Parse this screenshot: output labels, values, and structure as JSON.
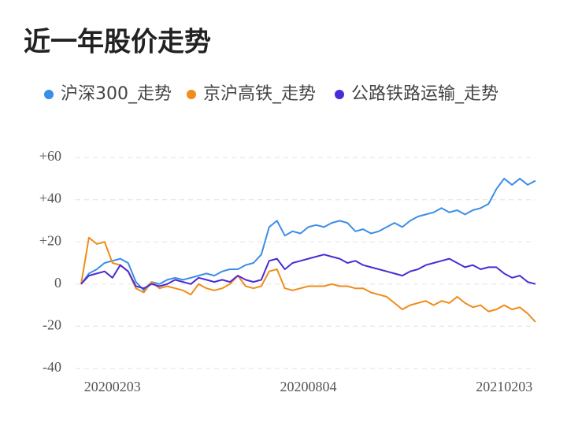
{
  "chart_data": {
    "type": "line",
    "title": "近一年股价走势",
    "categories": [
      null,
      null,
      null,
      null,
      "20200203",
      null,
      null,
      null,
      null,
      null,
      null,
      null,
      null,
      null,
      null,
      null,
      null,
      null,
      null,
      null,
      null,
      null,
      null,
      null,
      null,
      null,
      null,
      null,
      null,
      "20200804",
      null,
      null,
      null,
      null,
      null,
      null,
      null,
      null,
      null,
      null,
      null,
      null,
      null,
      null,
      null,
      null,
      null,
      null,
      null,
      null,
      null,
      null,
      null,
      null,
      "20210203",
      null,
      null,
      null,
      null
    ],
    "series": [
      {
        "name": "沪深300_走势",
        "color": "#3a8ee6",
        "values": [
          0,
          5,
          7,
          10,
          11,
          12,
          10,
          1,
          -3,
          1,
          0,
          2,
          3,
          2,
          3,
          4,
          5,
          4,
          6,
          7,
          7,
          9,
          10,
          14,
          27,
          30,
          23,
          25,
          24,
          27,
          28,
          27,
          29,
          30,
          29,
          25,
          26,
          24,
          25,
          27,
          29,
          27,
          30,
          32,
          33,
          34,
          36,
          34,
          35,
          33,
          35,
          36,
          38,
          45,
          50,
          47,
          50,
          47,
          49
        ]
      },
      {
        "name": "京沪高铁_走势",
        "color": "#f08c1a",
        "values": [
          0,
          22,
          19,
          20,
          10,
          9,
          6,
          -2,
          -4,
          1,
          -2,
          -1,
          -2,
          -3,
          -5,
          0,
          -2,
          -3,
          -2,
          0,
          4,
          -1,
          -2,
          -1,
          6,
          7,
          -2,
          -3,
          -2,
          -1,
          -1,
          -1,
          0,
          -1,
          -1,
          -2,
          -2,
          -4,
          -5,
          -6,
          -9,
          -12,
          -10,
          -9,
          -8,
          -10,
          -8,
          -9,
          -6,
          -9,
          -11,
          -10,
          -13,
          -12,
          -10,
          -12,
          -11,
          -14,
          -18
        ]
      },
      {
        "name": "公路铁路运输_走势",
        "color": "#4b2bd6",
        "values": [
          0,
          4,
          5,
          6,
          3,
          9,
          6,
          -1,
          -2,
          0,
          -1,
          0,
          2,
          1,
          0,
          3,
          2,
          1,
          2,
          1,
          4,
          2,
          1,
          2,
          11,
          12,
          7,
          10,
          11,
          12,
          13,
          14,
          13,
          12,
          10,
          11,
          9,
          8,
          7,
          6,
          5,
          4,
          6,
          7,
          9,
          10,
          11,
          12,
          10,
          8,
          9,
          7,
          8,
          8,
          5,
          3,
          4,
          1,
          0
        ]
      }
    ],
    "ylim": [
      -40,
      60
    ],
    "yticks": [
      {
        "value": -40,
        "label": "-40"
      },
      -20,
      0,
      {
        "value": 20,
        "label": "+20"
      },
      {
        "value": 40,
        "label": "+40"
      },
      {
        "value": 60,
        "label": "+60"
      }
    ],
    "grid": true
  }
}
